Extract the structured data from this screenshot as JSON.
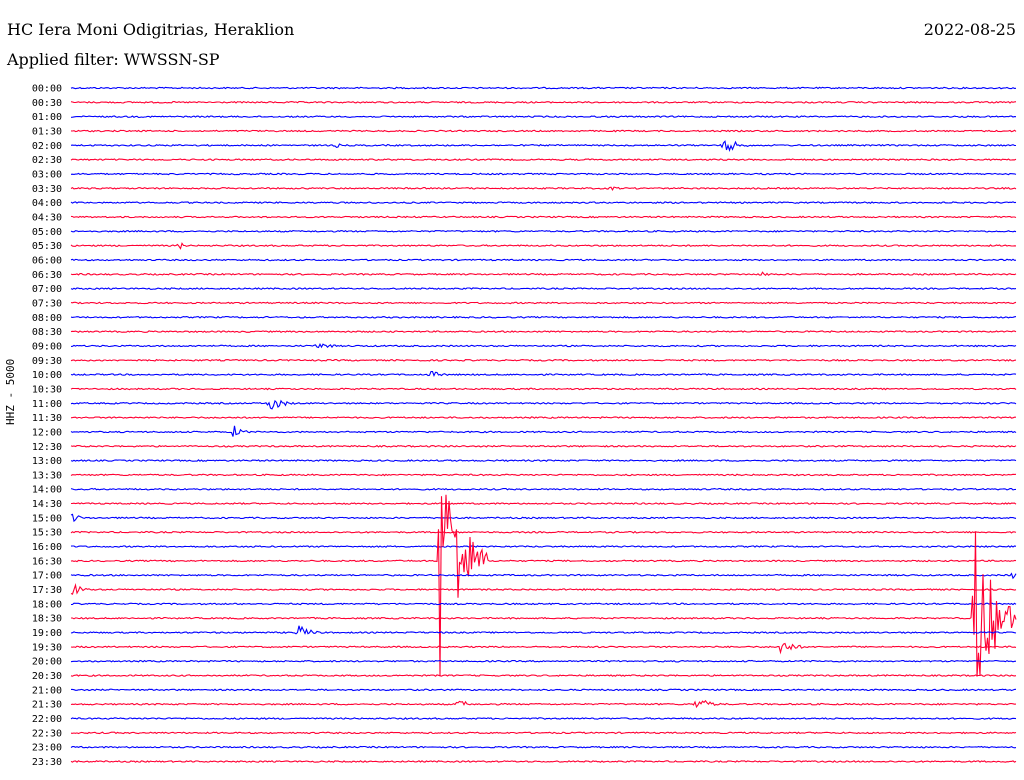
{
  "header": {
    "station": "HC Iera Moni Odigitrias, Heraklion",
    "date": "2022-08-25",
    "filter": "Applied filter: WWSSN-SP",
    "channel": "HHZ - 5000"
  },
  "chart_data": {
    "type": "line",
    "title": "HC Iera Moni Odigitrias, Heraklion",
    "ylabel": "HHZ - 5000",
    "trace_colors": [
      "#0000ff",
      "#ff0033"
    ],
    "row_labels": [
      "00:00",
      "00:30",
      "01:00",
      "01:30",
      "02:00",
      "02:30",
      "03:00",
      "03:30",
      "04:00",
      "04:30",
      "05:00",
      "05:30",
      "06:00",
      "06:30",
      "07:00",
      "07:30",
      "08:00",
      "08:30",
      "09:00",
      "09:30",
      "10:00",
      "10:30",
      "11:00",
      "11:30",
      "12:00",
      "12:30",
      "13:00",
      "13:30",
      "14:00",
      "14:30",
      "15:00",
      "15:30",
      "16:00",
      "16:30",
      "17:00",
      "17:30",
      "18:00",
      "18:30",
      "19:00",
      "19:30",
      "20:00",
      "20:30",
      "21:00",
      "21:30",
      "22:00",
      "22:30",
      "23:00",
      "23:30"
    ],
    "events": [
      {
        "row": 4,
        "pos": 0.69,
        "amp": 10,
        "len": 0.03
      },
      {
        "row": 4,
        "pos": 0.28,
        "amp": 3,
        "len": 0.01
      },
      {
        "row": 7,
        "pos": 0.57,
        "amp": 3,
        "len": 0.02
      },
      {
        "row": 11,
        "pos": 0.115,
        "amp": 4,
        "len": 0.01
      },
      {
        "row": 13,
        "pos": 0.73,
        "amp": 3,
        "len": 0.02
      },
      {
        "row": 18,
        "pos": 0.26,
        "amp": 5,
        "len": 0.03
      },
      {
        "row": 20,
        "pos": 0.38,
        "amp": 4,
        "len": 0.03
      },
      {
        "row": 22,
        "pos": 0.21,
        "amp": 9,
        "len": 0.03
      },
      {
        "row": 24,
        "pos": 0.17,
        "amp": 9,
        "len": 0.02
      },
      {
        "row": 30,
        "pos": 0.0,
        "amp": 6,
        "len": 0.02
      },
      {
        "row": 33,
        "pos": 0.39,
        "amp": 140,
        "len": 0.05
      },
      {
        "row": 34,
        "pos": 0.995,
        "amp": 8,
        "len": 0.005
      },
      {
        "row": 35,
        "pos": 0.0,
        "amp": 10,
        "len": 0.02
      },
      {
        "row": 37,
        "pos": 0.955,
        "amp": 100,
        "len": 0.05
      },
      {
        "row": 38,
        "pos": 0.24,
        "amp": 8,
        "len": 0.03
      },
      {
        "row": 39,
        "pos": 0.75,
        "amp": 9,
        "len": 0.03
      },
      {
        "row": 43,
        "pos": 0.41,
        "amp": 6,
        "len": 0.02
      },
      {
        "row": 43,
        "pos": 0.66,
        "amp": 9,
        "len": 0.03
      }
    ]
  }
}
